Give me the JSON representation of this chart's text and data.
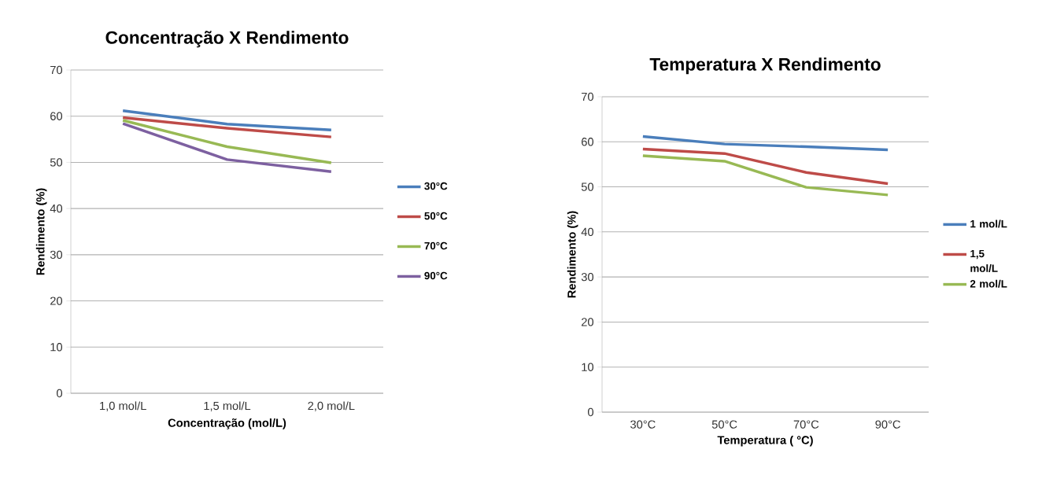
{
  "chart_data": [
    {
      "type": "line",
      "title": "Concentração X Rendimento",
      "xlabel": "Concentração (mol/L)",
      "ylabel": "Rendimento (%)",
      "categories": [
        "1,0 mol/L",
        "1,5 mol/L",
        "2,0 mol/L"
      ],
      "ylim": [
        0,
        70
      ],
      "yticks": [
        0,
        10,
        20,
        30,
        40,
        50,
        60,
        70
      ],
      "grid": "y",
      "legend": "right",
      "series": [
        {
          "name": "30°C",
          "color": "#4a7ebb",
          "values": [
            61.2,
            58.3,
            57.0
          ]
        },
        {
          "name": "50°C",
          "color": "#be4b48",
          "values": [
            59.7,
            57.4,
            55.5
          ]
        },
        {
          "name": "70°C",
          "color": "#98b954",
          "values": [
            59.1,
            53.4,
            49.9
          ]
        },
        {
          "name": "90°C",
          "color": "#7d60a0",
          "values": [
            58.4,
            50.6,
            48.0
          ]
        }
      ]
    },
    {
      "type": "line",
      "title": "Temperatura  X Rendimento",
      "xlabel": "Temperatura ( °C)",
      "ylabel": "Rendimento (%)",
      "categories": [
        "30°C",
        "50°C",
        "70°C",
        "90°C"
      ],
      "ylim": [
        0,
        70
      ],
      "yticks": [
        0,
        10,
        20,
        30,
        40,
        50,
        60,
        70
      ],
      "grid": "y",
      "legend": "right",
      "series": [
        {
          "name": "1 mol/L",
          "color": "#4a7ebb",
          "values": [
            61.2,
            59.5,
            58.9,
            58.2
          ]
        },
        {
          "name": "1,5 mol/L",
          "color": "#be4b48",
          "values": [
            58.4,
            57.4,
            53.2,
            50.7
          ]
        },
        {
          "name": "2 mol/L",
          "color": "#98b954",
          "values": [
            56.9,
            55.7,
            49.9,
            48.2
          ]
        }
      ]
    }
  ]
}
